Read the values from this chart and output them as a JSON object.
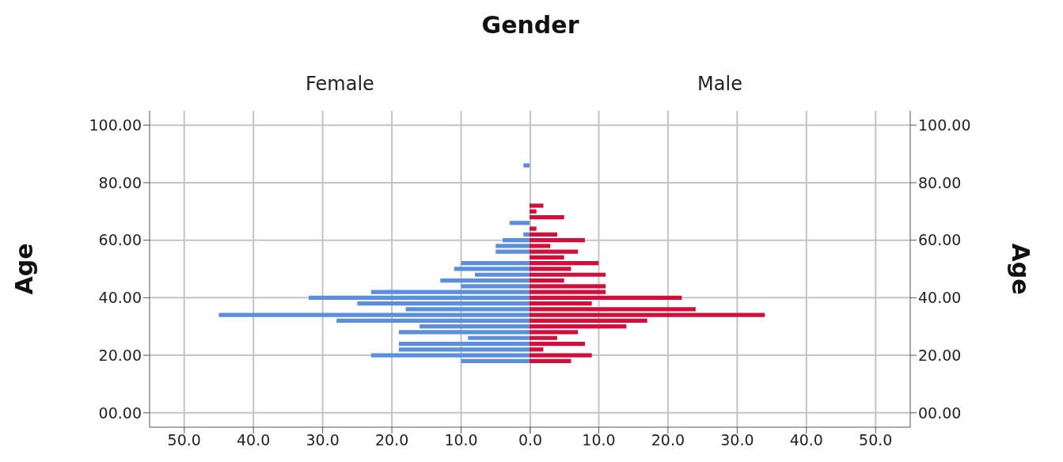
{
  "chart_data": [
    {
      "type": "histogram",
      "orientation": "horizontal",
      "title": "Female",
      "annotations": [
        "Gender"
      ],
      "ylabel": "Age",
      "color": "#5b8fde",
      "grid": true,
      "bins": [
        17,
        19,
        21,
        23,
        25,
        27,
        29,
        31,
        33,
        35,
        37,
        39,
        41,
        43,
        45,
        47,
        49,
        51,
        53,
        55,
        57,
        59,
        61,
        63,
        65,
        67,
        69,
        71,
        73,
        75,
        77,
        79,
        81,
        83,
        85,
        87
      ],
      "values": [
        10,
        23,
        19,
        19,
        9,
        19,
        16,
        28,
        45,
        18,
        25,
        32,
        23,
        10,
        13,
        8,
        11,
        10,
        0,
        5,
        5,
        4,
        1,
        0,
        3,
        0,
        0,
        0,
        0,
        0,
        0,
        0,
        0,
        0,
        1
      ],
      "xlim": [
        55,
        0
      ],
      "xticks": [
        {
          "value": 50,
          "label": "50.0"
        },
        {
          "value": 40,
          "label": "40.0"
        },
        {
          "value": 30,
          "label": "30.0"
        },
        {
          "value": 20,
          "label": "20.0"
        },
        {
          "value": 10,
          "label": "10.0"
        },
        {
          "value": 0,
          "label": "0.0"
        }
      ],
      "ylim": [
        -5,
        105
      ],
      "yticks": [
        {
          "value": 0,
          "label": "00.00"
        },
        {
          "value": 20,
          "label": "20.00"
        },
        {
          "value": 40,
          "label": "40.00"
        },
        {
          "value": 60,
          "label": "60.00"
        },
        {
          "value": 80,
          "label": "80.00"
        },
        {
          "value": 100,
          "label": "100.00"
        }
      ]
    },
    {
      "type": "histogram",
      "orientation": "horizontal",
      "title": "Male",
      "ylabel": "Age",
      "color": "#d20f3b",
      "grid": true,
      "bins": [
        17,
        19,
        21,
        23,
        25,
        27,
        29,
        31,
        33,
        35,
        37,
        39,
        41,
        43,
        45,
        47,
        49,
        51,
        53,
        55,
        57,
        59,
        61,
        63,
        65,
        67,
        69,
        71,
        73,
        75,
        77,
        79,
        81,
        83,
        85,
        87
      ],
      "values": [
        6,
        9,
        2,
        8,
        4,
        7,
        14,
        17,
        34,
        24,
        9,
        22,
        11,
        11,
        5,
        11,
        6,
        10,
        5,
        7,
        3,
        8,
        4,
        1,
        0,
        5,
        1,
        2,
        0,
        0,
        0,
        0,
        0,
        0,
        0
      ],
      "xlim": [
        0,
        55
      ],
      "xticks": [
        {
          "value": 0,
          "label": null
        },
        {
          "value": 10,
          "label": "10.0"
        },
        {
          "value": 20,
          "label": "20.0"
        },
        {
          "value": 30,
          "label": "30.0"
        },
        {
          "value": 40,
          "label": "40.0"
        },
        {
          "value": 50,
          "label": "50.0"
        }
      ],
      "ylim": [
        -5,
        105
      ],
      "yticks": [
        {
          "value": 0,
          "label": "00.00"
        },
        {
          "value": 20,
          "label": "20.00"
        },
        {
          "value": 40,
          "label": "40.00"
        },
        {
          "value": 60,
          "label": "60.00"
        },
        {
          "value": 80,
          "label": "80.00"
        },
        {
          "value": 100,
          "label": "100.00"
        }
      ]
    }
  ]
}
